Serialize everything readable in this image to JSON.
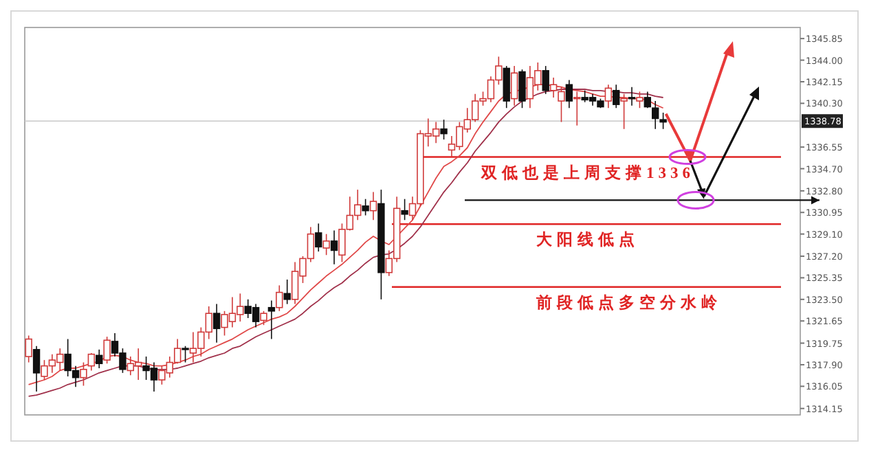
{
  "chart_data": {
    "type": "candlestick",
    "categories": [
      null,
      null,
      null,
      null,
      null,
      null,
      null,
      null,
      null,
      null,
      null,
      null,
      null,
      null,
      null,
      null,
      null,
      null,
      null,
      null,
      null,
      null,
      null,
      null,
      null,
      null,
      null,
      null,
      null,
      null,
      null,
      null,
      null,
      null,
      null,
      null,
      null,
      null,
      null,
      null,
      null,
      null,
      null,
      null,
      null,
      null,
      null,
      null,
      null,
      null,
      null,
      null,
      null,
      null,
      null,
      null,
      null,
      null,
      null,
      null,
      null,
      null,
      null,
      null,
      null,
      null,
      null,
      null,
      null,
      null,
      null,
      null,
      null,
      null,
      null,
      null,
      null,
      null,
      null,
      null,
      null,
      null,
      null,
      null,
      null,
      null,
      null,
      null,
      null,
      null,
      null,
      null,
      null,
      null,
      null,
      null,
      null,
      null,
      null
    ],
    "ohlc": [
      [
        1318.6,
        1320.4,
        1318.1,
        1320.1
      ],
      [
        1319.2,
        1319.5,
        1315.6,
        1317.2
      ],
      [
        1316.9,
        1318.3,
        1316.6,
        1317.8
      ],
      [
        1317.8,
        1318.8,
        1317.2,
        1318.3
      ],
      [
        1318.1,
        1319.3,
        1317.4,
        1318.8
      ],
      [
        1318.8,
        1320.1,
        1316.9,
        1317.4
      ],
      [
        1317.4,
        1317.8,
        1316.0,
        1316.8
      ],
      [
        1316.8,
        1318.1,
        1316.1,
        1317.5
      ],
      [
        1317.8,
        1318.9,
        1317.4,
        1318.8
      ],
      [
        1318.7,
        1319.2,
        1317.6,
        1318.0
      ],
      [
        1318.3,
        1320.3,
        1318.0,
        1320.0
      ],
      [
        1319.9,
        1320.6,
        1318.6,
        1318.9
      ],
      [
        1318.9,
        1319.3,
        1317.2,
        1317.5
      ],
      [
        1317.4,
        1318.6,
        1317.0,
        1318.0
      ],
      [
        1317.8,
        1319.3,
        1316.6,
        1318.1
      ],
      [
        1317.8,
        1318.6,
        1316.6,
        1317.4
      ],
      [
        1317.6,
        1318.1,
        1315.6,
        1316.6
      ],
      [
        1316.6,
        1317.8,
        1316.2,
        1317.4
      ],
      [
        1317.2,
        1318.6,
        1316.8,
        1318.1
      ],
      [
        1318.1,
        1320.1,
        1318.0,
        1319.3
      ],
      [
        1319.3,
        1319.5,
        1318.1,
        1319.2
      ],
      [
        1318.9,
        1320.7,
        1318.1,
        1319.3
      ],
      [
        1319.3,
        1321.1,
        1318.6,
        1320.7
      ],
      [
        1320.7,
        1322.9,
        1320.1,
        1322.3
      ],
      [
        1322.3,
        1323.1,
        1319.8,
        1321.0
      ],
      [
        1321.1,
        1322.5,
        1320.4,
        1322.2
      ],
      [
        1321.6,
        1323.7,
        1321.1,
        1322.3
      ],
      [
        1322.2,
        1324.0,
        1321.6,
        1322.9
      ],
      [
        1322.9,
        1323.5,
        1321.9,
        1322.3
      ],
      [
        1322.8,
        1323.1,
        1321.1,
        1321.6
      ],
      [
        1321.7,
        1322.5,
        1321.3,
        1322.3
      ],
      [
        1322.8,
        1323.4,
        1320.1,
        1322.5
      ],
      [
        1322.8,
        1324.7,
        1322.5,
        1324.1
      ],
      [
        1324.0,
        1325.2,
        1323.1,
        1323.5
      ],
      [
        1323.5,
        1326.7,
        1323.1,
        1325.9
      ],
      [
        1325.5,
        1327.2,
        1324.9,
        1327.0
      ],
      [
        1327.0,
        1329.7,
        1326.7,
        1329.1
      ],
      [
        1329.2,
        1330.0,
        1327.6,
        1328.0
      ],
      [
        1327.9,
        1329.1,
        1327.3,
        1328.5
      ],
      [
        1328.5,
        1329.4,
        1326.5,
        1327.7
      ],
      [
        1327.3,
        1330.0,
        1326.7,
        1329.5
      ],
      [
        1329.5,
        1332.3,
        1329.4,
        1330.7
      ],
      [
        1330.7,
        1332.9,
        1330.3,
        1331.6
      ],
      [
        1331.5,
        1332.1,
        1330.7,
        1331.1
      ],
      [
        1331.1,
        1332.7,
        1330.3,
        1331.9
      ],
      [
        1331.7,
        1332.9,
        1323.5,
        1325.8
      ],
      [
        1325.8,
        1327.7,
        1325.5,
        1327.0
      ],
      [
        1327.0,
        1332.3,
        1326.7,
        1331.3
      ],
      [
        1331.1,
        1332.1,
        1330.3,
        1330.8
      ],
      [
        1330.7,
        1332.3,
        1330.3,
        1331.7
      ],
      [
        1331.7,
        1338.0,
        1331.5,
        1337.7
      ],
      [
        1337.5,
        1339.0,
        1336.6,
        1337.7
      ],
      [
        1337.5,
        1338.7,
        1336.9,
        1338.1
      ],
      [
        1338.1,
        1338.9,
        1337.2,
        1337.7
      ],
      [
        1336.3,
        1337.5,
        1335.7,
        1336.8
      ],
      [
        1336.6,
        1338.7,
        1336.3,
        1338.3
      ],
      [
        1338.1,
        1339.9,
        1337.8,
        1338.9
      ],
      [
        1338.9,
        1341.1,
        1338.7,
        1340.5
      ],
      [
        1340.5,
        1341.3,
        1340.1,
        1340.7
      ],
      [
        1340.7,
        1342.6,
        1340.4,
        1342.3
      ],
      [
        1342.3,
        1344.3,
        1341.9,
        1343.5
      ],
      [
        1343.3,
        1343.5,
        1339.9,
        1340.5
      ],
      [
        1340.7,
        1343.5,
        1340.1,
        1342.9
      ],
      [
        1343.0,
        1343.2,
        1339.9,
        1340.5
      ],
      [
        1340.7,
        1343.5,
        1339.9,
        1342.5
      ],
      [
        1341.9,
        1343.8,
        1341.4,
        1343.1
      ],
      [
        1343.1,
        1343.5,
        1341.1,
        1341.4
      ],
      [
        1341.4,
        1342.5,
        1340.8,
        1341.9
      ],
      [
        1340.5,
        1341.7,
        1338.7,
        1341.3
      ],
      [
        1341.9,
        1342.3,
        1339.9,
        1340.5
      ],
      [
        1340.7,
        1341.3,
        1338.4,
        1340.8
      ],
      [
        1340.8,
        1341.4,
        1340.4,
        1340.6
      ],
      [
        1340.8,
        1341.1,
        1340.1,
        1340.5
      ],
      [
        1340.5,
        1340.7,
        1339.9,
        1340.0
      ],
      [
        1340.5,
        1341.9,
        1339.9,
        1341.6
      ],
      [
        1341.4,
        1341.9,
        1339.9,
        1340.2
      ],
      [
        1340.5,
        1341.1,
        1338.1,
        1340.7
      ],
      [
        1340.8,
        1341.7,
        1340.1,
        1340.7
      ],
      [
        1340.5,
        1341.3,
        1339.9,
        1340.8
      ],
      [
        1340.8,
        1341.3,
        1339.9,
        1340.0
      ],
      [
        1339.9,
        1340.5,
        1338.1,
        1339.0
      ],
      [
        1338.9,
        1339.5,
        1338.1,
        1338.7
      ],
      null,
      null,
      null,
      null,
      null,
      null,
      null,
      null,
      null,
      null,
      null,
      null,
      null,
      null,
      null,
      null,
      null
    ],
    "colors": [
      "#d03a3a",
      "#111111",
      "#d03a3a",
      "#d03a3a",
      "#d03a3a",
      "#111111",
      "#111111",
      "#d03a3a",
      "#d03a3a",
      "#111111",
      "#d03a3a",
      "#111111",
      "#111111",
      "#d03a3a",
      "#d03a3a",
      "#111111",
      "#111111",
      "#d03a3a",
      "#d03a3a",
      "#d03a3a",
      "#111111",
      "#d03a3a",
      "#d03a3a",
      "#d03a3a",
      "#111111",
      "#d03a3a",
      "#d03a3a",
      "#d03a3a",
      "#111111",
      "#111111",
      "#d03a3a",
      "#111111",
      "#d03a3a",
      "#111111",
      "#d03a3a",
      "#d03a3a",
      "#d03a3a",
      "#111111",
      "#d03a3a",
      "#111111",
      "#d03a3a",
      "#d03a3a",
      "#d03a3a",
      "#111111",
      "#d03a3a",
      "#111111",
      "#d03a3a",
      "#d03a3a",
      "#111111",
      "#d03a3a",
      "#d03a3a",
      "#d03a3a",
      "#d03a3a",
      "#111111",
      "#d03a3a",
      "#d03a3a",
      "#d03a3a",
      "#d03a3a",
      "#d03a3a",
      "#d03a3a",
      "#d03a3a",
      "#111111",
      "#d03a3a",
      "#111111",
      "#d03a3a",
      "#d03a3a",
      "#111111",
      "#d03a3a",
      "#d03a3a",
      "#111111",
      "#d03a3a",
      "#111111",
      "#111111",
      "#111111",
      "#d03a3a",
      "#111111",
      "#d03a3a",
      "#111111",
      "#d03a3a",
      "#111111",
      "#111111",
      "#111111",
      null,
      null,
      null,
      null,
      null,
      null,
      null,
      null,
      null,
      null,
      null,
      null,
      null,
      null,
      null,
      null,
      null
    ],
    "series": [
      {
        "type": "line",
        "color": "#e04848",
        "values": [
          1316.2,
          1316.4,
          1316.6,
          1316.9,
          1317.4,
          1317.6,
          1317.6,
          1317.8,
          1318.0,
          1318.2,
          1318.6,
          1318.7,
          1318.6,
          1318.3,
          1318.1,
          1318.0,
          1317.8,
          1317.8,
          1317.9,
          1318.1,
          1318.3,
          1318.6,
          1318.8,
          1319.2,
          1319.5,
          1319.8,
          1320.1,
          1320.5,
          1320.9,
          1321.2,
          1321.5,
          1321.8,
          1322.0,
          1322.3,
          1322.9,
          1323.6,
          1324.3,
          1324.9,
          1325.5,
          1326.0,
          1326.5,
          1327.1,
          1327.7,
          1328.4,
          1328.9,
          1328.5,
          1328.2,
          1328.9,
          1329.6,
          1330.3,
          1331.5,
          1332.7,
          1333.9,
          1334.9,
          1335.3,
          1335.8,
          1336.5,
          1337.7,
          1338.7,
          1339.6,
          1340.5,
          1341.1,
          1341.3,
          1341.5,
          1341.7,
          1341.9,
          1341.9,
          1341.8,
          1341.7,
          1341.5,
          1341.4,
          1341.3,
          1341.1,
          1340.9,
          1340.9,
          1340.8,
          1340.8,
          1340.7,
          1340.7,
          1340.6,
          1340.2,
          1339.9,
          null,
          null,
          null,
          null,
          null,
          null,
          null,
          null,
          null,
          null,
          null,
          null,
          null,
          null,
          null,
          null,
          null
        ]
      },
      {
        "type": "line",
        "color": "#a0304a",
        "values": [
          1315.2,
          1315.3,
          1315.5,
          1315.7,
          1315.9,
          1316.2,
          1316.4,
          1316.6,
          1316.9,
          1317.2,
          1317.4,
          1317.6,
          1317.8,
          1317.8,
          1317.8,
          1317.6,
          1317.5,
          1317.5,
          1317.5,
          1317.6,
          1317.8,
          1318.0,
          1318.2,
          1318.5,
          1318.7,
          1318.9,
          1319.3,
          1319.5,
          1319.9,
          1320.3,
          1320.6,
          1320.9,
          1321.2,
          1321.5,
          1321.8,
          1322.3,
          1322.9,
          1323.4,
          1324.0,
          1324.5,
          1324.9,
          1325.5,
          1326.0,
          1326.6,
          1327.1,
          1327.3,
          1327.4,
          1327.8,
          1328.3,
          1328.9,
          1329.7,
          1330.7,
          1331.7,
          1332.7,
          1333.5,
          1334.4,
          1335.2,
          1336.2,
          1337.0,
          1337.8,
          1338.7,
          1339.4,
          1340.0,
          1340.5,
          1340.8,
          1341.1,
          1341.3,
          1341.4,
          1341.5,
          1341.5,
          1341.5,
          1341.5,
          1341.4,
          1341.4,
          1341.3,
          1341.3,
          1341.2,
          1341.2,
          1341.1,
          1341.1,
          1340.9,
          1340.8,
          null,
          null,
          null,
          null,
          null,
          null,
          null,
          null,
          null,
          null,
          null,
          null,
          null,
          null,
          null,
          null,
          null
        ]
      }
    ],
    "ylim": [
      1313.6,
      1346.8
    ],
    "yticks": [
      1345.85,
      {
        "value": 1344,
        "label": "1344.00"
      },
      1342.15,
      {
        "value": 1340.3,
        "label": "1340.30"
      },
      1336.55,
      {
        "value": 1334.7,
        "label": "1334.70"
      },
      {
        "value": 1332.8,
        "label": "1332.80"
      },
      1330.95,
      {
        "value": 1329.1,
        "label": "1329.10"
      },
      {
        "value": 1327.2,
        "label": "1327.20"
      },
      1325.35,
      {
        "value": 1323.5,
        "label": "1323.50"
      },
      1321.65,
      1319.75,
      {
        "value": 1317.9,
        "label": "1317.90"
      },
      1316.05,
      1314.15
    ],
    "ref_lines": [
      {
        "axis": "y",
        "value": 1338.78,
        "label": "1338.78",
        "color": "#c8c8c8"
      },
      {
        "axis": "y",
        "value": 1335.7,
        "label": "双低也是上周支撑1336",
        "color": "#e02424"
      },
      {
        "axis": "y",
        "value": 1332.0,
        "color": "#111111"
      },
      {
        "axis": "y",
        "value": 1329.95,
        "label": "大阳线低点",
        "color": "#e02424"
      },
      {
        "axis": "y",
        "value": 1324.56,
        "label": "前段低点多空分水岭",
        "color": "#e02424"
      }
    ]
  }
}
